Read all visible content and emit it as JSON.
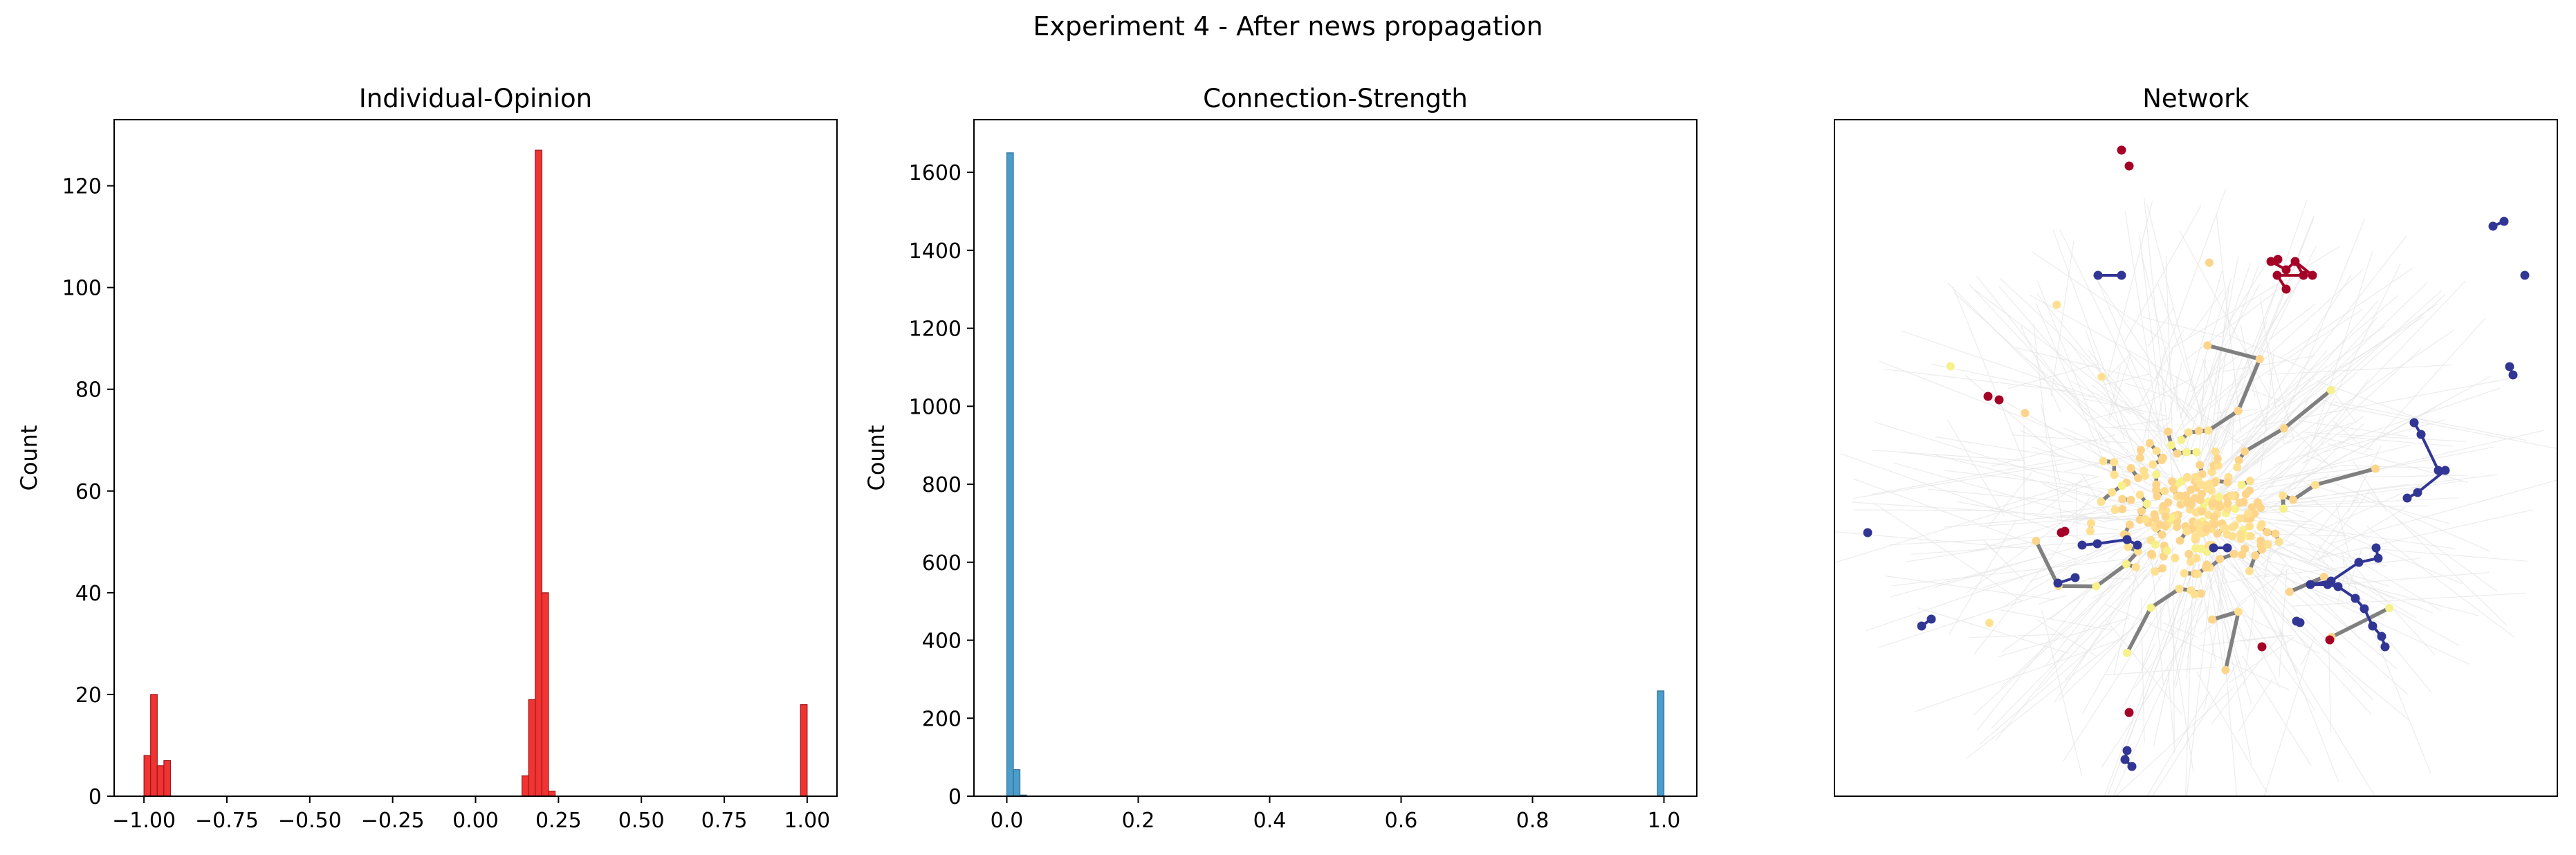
{
  "figure": {
    "title": "Experiment 4 - After news propagation"
  },
  "chart_data": [
    {
      "type": "bar",
      "subtype": "histogram",
      "title": "Individual-Opinion",
      "xlabel": "",
      "ylabel": "Count",
      "xlim": [
        -1.09,
        1.09
      ],
      "ylim": [
        0,
        133
      ],
      "xticks": [
        -1.0,
        -0.75,
        -0.5,
        -0.25,
        0.0,
        0.25,
        0.5,
        0.75,
        1.0
      ],
      "xtick_labels": [
        "−1.00",
        "−0.75",
        "−0.50",
        "−0.25",
        "0.00",
        "0.25",
        "0.50",
        "0.75",
        "1.00"
      ],
      "yticks": [
        0,
        20,
        40,
        60,
        80,
        100,
        120
      ],
      "ytick_labels": [
        "0",
        "20",
        "40",
        "60",
        "80",
        "100",
        "120"
      ],
      "bin_width": 0.02,
      "bins": [
        {
          "x0": -1.0,
          "x1": -0.98,
          "count": 8
        },
        {
          "x0": -0.98,
          "x1": -0.96,
          "count": 20
        },
        {
          "x0": -0.96,
          "x1": -0.94,
          "count": 6
        },
        {
          "x0": -0.94,
          "x1": -0.92,
          "count": 7
        },
        {
          "x0": 0.14,
          "x1": 0.16,
          "count": 4
        },
        {
          "x0": 0.16,
          "x1": 0.18,
          "count": 19
        },
        {
          "x0": 0.18,
          "x1": 0.2,
          "count": 127
        },
        {
          "x0": 0.2,
          "x1": 0.22,
          "count": 40
        },
        {
          "x0": 0.22,
          "x1": 0.24,
          "count": 1
        },
        {
          "x0": 0.98,
          "x1": 1.0,
          "count": 18
        }
      ],
      "bar_color": "#f03333",
      "edge_color": "#a01818"
    },
    {
      "type": "bar",
      "subtype": "histogram",
      "title": "Connection-Strength",
      "xlabel": "",
      "ylabel": "Count",
      "xlim": [
        -0.05,
        1.05
      ],
      "ylim": [
        0,
        1735
      ],
      "xticks": [
        0.0,
        0.2,
        0.4,
        0.6,
        0.8,
        1.0
      ],
      "xtick_labels": [
        "0.0",
        "0.2",
        "0.4",
        "0.6",
        "0.8",
        "1.0"
      ],
      "yticks": [
        0,
        200,
        400,
        600,
        800,
        1000,
        1200,
        1400,
        1600
      ],
      "ytick_labels": [
        "0",
        "200",
        "400",
        "600",
        "800",
        "1000",
        "1200",
        "1400",
        "1600"
      ],
      "bin_width": 0.01,
      "bins": [
        {
          "x0": 0.0,
          "x1": 0.01,
          "count": 1650
        },
        {
          "x0": 0.01,
          "x1": 0.02,
          "count": 68
        },
        {
          "x0": 0.02,
          "x1": 0.03,
          "count": 3
        },
        {
          "x0": 0.99,
          "x1": 1.0,
          "count": 270
        }
      ],
      "bar_color": "#4b9cc9",
      "edge_color": "#2a6f96"
    },
    {
      "type": "network",
      "title": "Network",
      "note": "Opinion-colored node graph",
      "color_scale": [
        "#a50026",
        "#fee090",
        "#313695"
      ],
      "strong_edge_color": "#808080",
      "weak_edge_color": "#e6e6e6"
    }
  ]
}
